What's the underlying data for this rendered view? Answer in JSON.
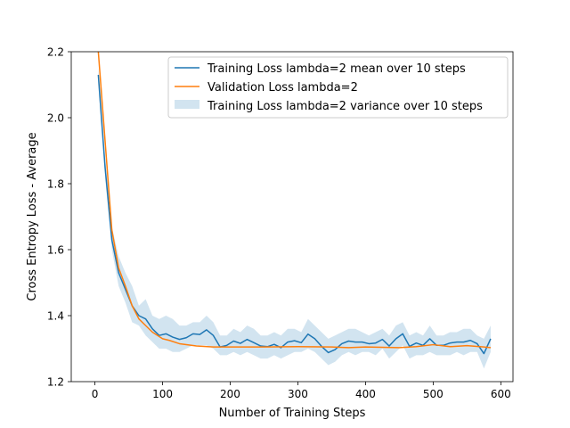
{
  "chart_data": {
    "type": "line",
    "title": "",
    "xlabel": "Number of Training Steps",
    "ylabel": "Cross Entropy Loss - Average",
    "xlim": [
      -35,
      618
    ],
    "ylim": [
      1.2,
      2.2
    ],
    "xticks": [
      0,
      100,
      200,
      300,
      400,
      500,
      600
    ],
    "yticks": [
      1.2,
      1.4,
      1.6,
      1.8,
      2.0,
      2.2
    ],
    "xtick_labels": [
      "0",
      "100",
      "200",
      "300",
      "400",
      "500",
      "600"
    ],
    "ytick_labels": [
      "1.2",
      "1.4",
      "1.6",
      "1.8",
      "2.0",
      "2.2"
    ],
    "legend_position": "upper-right",
    "series": [
      {
        "name": "Training Loss lambda=2 mean over 10 steps",
        "kind": "line",
        "color": "#1f77b4",
        "x": [
          5,
          15,
          25,
          35,
          45,
          55,
          65,
          75,
          85,
          95,
          105,
          115,
          125,
          135,
          145,
          155,
          165,
          175,
          185,
          195,
          205,
          215,
          225,
          235,
          245,
          255,
          265,
          275,
          285,
          295,
          305,
          315,
          325,
          335,
          345,
          355,
          365,
          375,
          385,
          395,
          405,
          415,
          425,
          435,
          445,
          455,
          465,
          475,
          485,
          495,
          505,
          515,
          525,
          535,
          545,
          555,
          565,
          575,
          585
        ],
        "values": [
          2.13,
          1.85,
          1.63,
          1.53,
          1.48,
          1.43,
          1.4,
          1.39,
          1.36,
          1.34,
          1.345,
          1.335,
          1.328,
          1.333,
          1.345,
          1.343,
          1.357,
          1.34,
          1.305,
          1.31,
          1.323,
          1.316,
          1.328,
          1.318,
          1.308,
          1.306,
          1.313,
          1.303,
          1.32,
          1.324,
          1.318,
          1.344,
          1.33,
          1.307,
          1.288,
          1.297,
          1.315,
          1.323,
          1.32,
          1.32,
          1.315,
          1.317,
          1.328,
          1.308,
          1.33,
          1.345,
          1.307,
          1.317,
          1.31,
          1.33,
          1.31,
          1.31,
          1.317,
          1.32,
          1.32,
          1.325,
          1.315,
          1.285,
          1.33
        ]
      },
      {
        "name": "Validation Loss lambda=2",
        "kind": "line",
        "color": "#ff7f0e",
        "x": [
          5,
          15,
          25,
          35,
          45,
          55,
          65,
          75,
          85,
          100,
          110,
          125,
          150,
          175,
          200,
          250,
          300,
          350,
          375,
          400,
          450,
          475,
          500,
          525,
          550,
          575,
          585
        ],
        "values": [
          2.2,
          1.93,
          1.66,
          1.545,
          1.49,
          1.43,
          1.39,
          1.37,
          1.35,
          1.33,
          1.325,
          1.315,
          1.308,
          1.305,
          1.305,
          1.305,
          1.306,
          1.305,
          1.303,
          1.305,
          1.303,
          1.306,
          1.312,
          1.306,
          1.309,
          1.305,
          1.303
        ]
      },
      {
        "name": "Training Loss lambda=2 variance over 10 steps",
        "kind": "band",
        "color": "#1f77b4",
        "opacity": 0.2,
        "x": [
          5,
          15,
          25,
          35,
          45,
          55,
          65,
          75,
          85,
          95,
          105,
          115,
          125,
          135,
          145,
          155,
          165,
          175,
          185,
          195,
          205,
          215,
          225,
          235,
          245,
          255,
          265,
          275,
          285,
          295,
          305,
          315,
          325,
          335,
          345,
          355,
          365,
          375,
          385,
          395,
          405,
          415,
          425,
          435,
          445,
          455,
          465,
          475,
          485,
          495,
          505,
          515,
          525,
          535,
          545,
          555,
          565,
          575,
          585
        ],
        "upper": [
          2.15,
          1.88,
          1.67,
          1.58,
          1.53,
          1.49,
          1.43,
          1.45,
          1.4,
          1.39,
          1.4,
          1.39,
          1.37,
          1.37,
          1.38,
          1.38,
          1.4,
          1.38,
          1.34,
          1.34,
          1.36,
          1.35,
          1.37,
          1.36,
          1.34,
          1.34,
          1.35,
          1.34,
          1.36,
          1.36,
          1.35,
          1.39,
          1.37,
          1.35,
          1.33,
          1.34,
          1.35,
          1.36,
          1.36,
          1.35,
          1.34,
          1.35,
          1.36,
          1.34,
          1.37,
          1.38,
          1.34,
          1.35,
          1.34,
          1.37,
          1.34,
          1.34,
          1.35,
          1.35,
          1.36,
          1.36,
          1.34,
          1.33,
          1.37
        ],
        "lower": [
          2.1,
          1.82,
          1.6,
          1.49,
          1.44,
          1.38,
          1.37,
          1.34,
          1.32,
          1.3,
          1.3,
          1.29,
          1.29,
          1.3,
          1.31,
          1.31,
          1.31,
          1.3,
          1.28,
          1.28,
          1.29,
          1.28,
          1.29,
          1.28,
          1.27,
          1.27,
          1.28,
          1.27,
          1.28,
          1.29,
          1.29,
          1.3,
          1.29,
          1.27,
          1.25,
          1.26,
          1.28,
          1.29,
          1.28,
          1.29,
          1.29,
          1.28,
          1.3,
          1.27,
          1.29,
          1.31,
          1.27,
          1.28,
          1.28,
          1.29,
          1.28,
          1.28,
          1.28,
          1.29,
          1.28,
          1.29,
          1.29,
          1.24,
          1.29
        ]
      }
    ]
  }
}
